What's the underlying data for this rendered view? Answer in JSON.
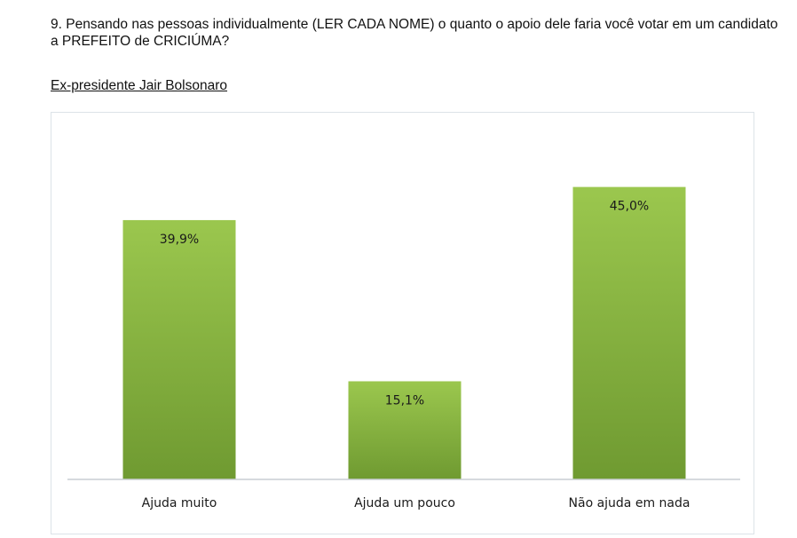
{
  "question": {
    "text": "9. Pensando nas pessoas individualmente (LER CADA NOME) o quanto o apoio dele faria você votar em um candidato a PREFEITO de CRICIÚMA?"
  },
  "subject": {
    "text": "Ex-presidente Jair Bolsonaro"
  },
  "colors": {
    "bar_top": "#9bc74e",
    "bar_bottom": "#6f9a31",
    "axis": "#c8ced3",
    "frame": "#dce3e8"
  },
  "chart_data": {
    "type": "bar",
    "categories": [
      "Ajuda muito",
      "Ajuda um pouco",
      "Não ajuda em nada"
    ],
    "values": [
      39.9,
      15.1,
      45.0
    ],
    "data_labels": [
      "39,9%",
      "15,1%",
      "45,0%"
    ],
    "ylim": [
      0,
      50
    ],
    "grid": false,
    "legend": "none"
  }
}
